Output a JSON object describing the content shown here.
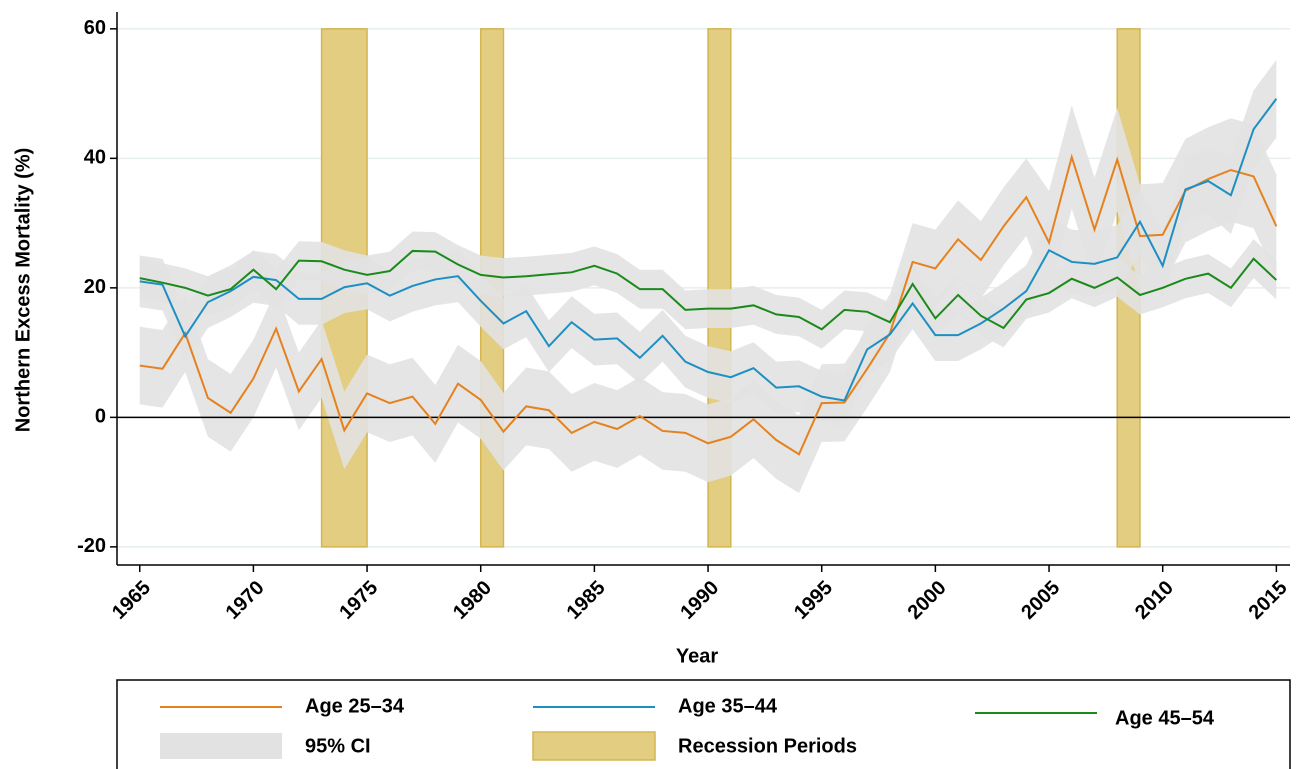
{
  "chart_data": {
    "type": "line",
    "x_label": "Year",
    "y_label": "Northern Excess Mortality (%)",
    "x": [
      1965,
      1966,
      1967,
      1968,
      1969,
      1970,
      1971,
      1972,
      1973,
      1974,
      1975,
      1976,
      1977,
      1978,
      1979,
      1980,
      1981,
      1982,
      1983,
      1984,
      1985,
      1986,
      1987,
      1988,
      1989,
      1990,
      1991,
      1992,
      1993,
      1994,
      1995,
      1996,
      1997,
      1998,
      1999,
      2000,
      2001,
      2002,
      2003,
      2004,
      2005,
      2006,
      2007,
      2008,
      2009,
      2010,
      2011,
      2012,
      2013,
      2014,
      2015
    ],
    "xlim": [
      1964,
      2015.6
    ],
    "xticks": [
      1965,
      1970,
      1975,
      1980,
      1985,
      1990,
      1995,
      2000,
      2005,
      2010,
      2015
    ],
    "ylim": [
      -22.8,
      62.6
    ],
    "yticks": [
      60,
      40,
      20,
      0,
      -20
    ],
    "grid": true,
    "grid_color": "#e6eeee",
    "reference_line": 0,
    "ci_label": "95% CI",
    "ci_color": "#e2e2e2",
    "recession_label": "Recession Periods",
    "recession_color": "#e2cd80",
    "recession_edge": "#d4b552",
    "recessions": [
      [
        1973,
        1975
      ],
      [
        1980,
        1981
      ],
      [
        1990,
        1991
      ],
      [
        2008,
        2009
      ]
    ],
    "series": [
      {
        "name": "Age 25–34",
        "color": "#e5821e",
        "values": [
          8,
          7.5,
          13,
          3,
          0.7,
          6,
          13.7,
          4,
          9,
          -2,
          3.7,
          2.2,
          3.2,
          -1,
          5.2,
          2.7,
          -2.2,
          1.7,
          1.1,
          -2.4,
          -0.7,
          -1.8,
          0.2,
          -2.1,
          -2.4,
          -4,
          -3,
          -0.3,
          -3.5,
          -5.7,
          2.2,
          2.3,
          7.5,
          13,
          24,
          23,
          27.5,
          24.3,
          29.5,
          34,
          27,
          40.2,
          29,
          39.8,
          28,
          28.2,
          35,
          36.8,
          38.2,
          37.2,
          29.5
        ],
        "ci_lower": [
          2,
          1.5,
          7,
          -3,
          -5.3,
          0,
          7.7,
          -2,
          3,
          -8,
          -2.3,
          -3.8,
          -2.8,
          -7,
          -0.8,
          -3.3,
          -8.2,
          -4.3,
          -4.9,
          -8.4,
          -6.7,
          -7.8,
          -5.8,
          -8.1,
          -8.4,
          -10,
          -9,
          -6.3,
          -9.5,
          -11.7,
          -3.8,
          -3.7,
          1.5,
          7,
          18,
          17,
          21.5,
          18.3,
          23.5,
          28,
          19,
          32.2,
          21,
          31.8,
          20,
          20.2,
          27,
          28.8,
          30.2,
          29.2,
          21.5
        ],
        "ci_upper": [
          14,
          13.5,
          19,
          9,
          6.7,
          12,
          19.7,
          10,
          15,
          4,
          9.7,
          8.2,
          9.2,
          5,
          11.2,
          8.7,
          3.8,
          7.7,
          7.1,
          3.6,
          5.3,
          4.2,
          6.2,
          3.9,
          3.6,
          2,
          3,
          5.7,
          2.5,
          0.3,
          8.2,
          8.3,
          13.5,
          19,
          30,
          29,
          33.5,
          30.3,
          35.5,
          40,
          35,
          48.2,
          37,
          47.8,
          36,
          36.2,
          43,
          44.8,
          46.2,
          45.2,
          37.5
        ]
      },
      {
        "name": "Age 35–44",
        "color": "#1d8fc2",
        "values": [
          21,
          20.5,
          12.5,
          17.8,
          19.5,
          21.7,
          21.2,
          18.3,
          18.3,
          20.1,
          20.7,
          18.8,
          20.3,
          21.3,
          21.8,
          18,
          14.5,
          16.4,
          11,
          14.7,
          12,
          12.2,
          9.2,
          12.6,
          8.6,
          7,
          6.2,
          7.6,
          4.6,
          4.8,
          3.2,
          2.6,
          10.5,
          12.8,
          17.6,
          12.7,
          12.7,
          14.5,
          16.8,
          19.5,
          25.8,
          24,
          23.7,
          24.7,
          30.2,
          23.4,
          35.2,
          36.5,
          34.3,
          44.5,
          49.2
        ],
        "ci_lower": [
          17,
          16.5,
          8.5,
          13.8,
          15.5,
          17.7,
          17.2,
          14.3,
          14.3,
          16.1,
          16.7,
          14.8,
          16.3,
          17.3,
          17.8,
          14,
          10.5,
          12.4,
          7,
          10.7,
          8,
          8.2,
          5.2,
          8.6,
          4.6,
          3,
          2.2,
          3.6,
          0.6,
          0.8,
          -0.8,
          -1.4,
          6.5,
          8.8,
          13.6,
          8.7,
          8.7,
          10.5,
          12.8,
          15.5,
          20.8,
          19,
          18.7,
          19.7,
          25.2,
          18.4,
          30.2,
          31.5,
          28.3,
          38.5,
          43.2
        ],
        "ci_upper": [
          25,
          24.5,
          16.5,
          21.8,
          23.5,
          25.7,
          25.2,
          22.3,
          22.3,
          24.1,
          24.7,
          22.8,
          24.3,
          25.3,
          25.8,
          22,
          18.5,
          20.4,
          15,
          18.7,
          16,
          16.2,
          13.2,
          16.6,
          12.6,
          11,
          10.2,
          11.6,
          8.6,
          8.8,
          7.2,
          6.6,
          14.5,
          16.8,
          21.6,
          16.7,
          16.7,
          18.5,
          20.8,
          23.5,
          30.8,
          29,
          28.7,
          29.7,
          35.2,
          28.4,
          40.2,
          41.5,
          40.3,
          50.5,
          55.2
        ]
      },
      {
        "name": "Age 45–54",
        "color": "#1b8a1b",
        "values": [
          21.5,
          20.8,
          20,
          18.8,
          19.8,
          22.8,
          19.8,
          24.2,
          24.1,
          22.8,
          22,
          22.6,
          25.7,
          25.6,
          23.6,
          22,
          21.6,
          21.8,
          22.1,
          22.4,
          23.4,
          22.2,
          19.8,
          19.8,
          16.6,
          16.8,
          16.8,
          17.3,
          15.9,
          15.5,
          13.6,
          16.6,
          16.3,
          14.7,
          20.6,
          15.3,
          18.9,
          15.7,
          13.8,
          18.2,
          19.2,
          21.4,
          20,
          21.6,
          18.9,
          20,
          21.4,
          22.2,
          20,
          24.5,
          21.2
        ],
        "ci_lower": [
          18.5,
          17.8,
          17,
          15.8,
          16.8,
          19.8,
          16.8,
          21.2,
          21.1,
          19.8,
          19,
          19.6,
          22.7,
          22.6,
          20.6,
          19,
          18.6,
          18.8,
          19.1,
          19.4,
          20.4,
          19.2,
          16.8,
          16.8,
          13.6,
          13.8,
          13.8,
          14.3,
          12.9,
          12.5,
          10.6,
          13.6,
          13.3,
          11.7,
          17.6,
          12.3,
          15.9,
          12.7,
          10.8,
          15.2,
          16.2,
          18.4,
          17,
          18.6,
          15.9,
          17,
          18.4,
          19.2,
          17,
          21.5,
          18.2
        ],
        "ci_upper": [
          24.5,
          23.8,
          23,
          21.8,
          22.8,
          25.8,
          22.8,
          27.2,
          27.1,
          25.8,
          25,
          25.6,
          28.7,
          28.6,
          26.6,
          25,
          24.6,
          24.8,
          25.1,
          25.4,
          26.4,
          25.2,
          22.8,
          22.8,
          19.6,
          19.8,
          19.8,
          20.3,
          18.9,
          18.5,
          16.6,
          19.6,
          19.3,
          17.7,
          23.6,
          18.3,
          21.9,
          18.7,
          16.8,
          21.2,
          22.2,
          24.4,
          23,
          24.6,
          21.9,
          23,
          24.4,
          25.2,
          23,
          27.5,
          24.2
        ]
      }
    ]
  }
}
